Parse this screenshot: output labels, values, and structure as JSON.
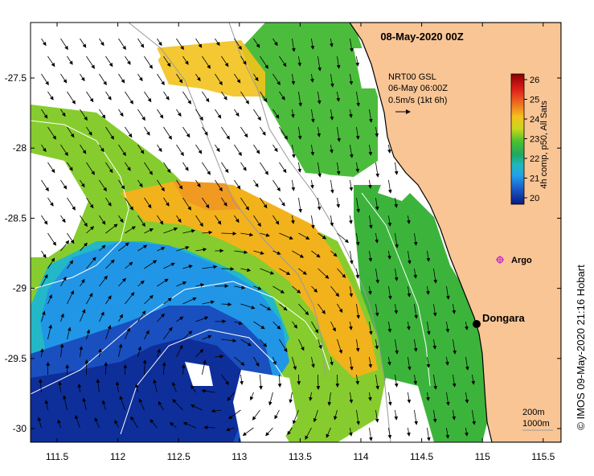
{
  "title": "08-May-2020 00Z",
  "current_info": {
    "line1": "NRT00 GSL",
    "line2": "06-May 06:00Z",
    "line3": "0.5m/s (1kt 6h)"
  },
  "colorbar": {
    "label": "4h comp, p50, All Sats",
    "ticks": [
      "26",
      "25",
      "24",
      "23",
      "22",
      "21",
      "20"
    ],
    "colors": [
      "#8b0000",
      "#d2161b",
      "#f07d1a",
      "#f2c11c",
      "#d8d51d",
      "#9ed21f",
      "#3fbf2a",
      "#1fa84a",
      "#20b0a0",
      "#21a8e0",
      "#1f6fd0",
      "#1634a8",
      "#0a1a80"
    ]
  },
  "places": [
    {
      "name": "Dongara",
      "lon": 114.93,
      "lat": -29.25
    },
    {
      "name": "Argo",
      "lon": 115.12,
      "lat": -28.78
    }
  ],
  "contours": {
    "labels": [
      "200m",
      "1000m"
    ]
  },
  "x_axis": {
    "ticks": [
      "111.5",
      "112",
      "112.5",
      "113",
      "113.5",
      "114",
      "114.5",
      "115",
      "115.5"
    ]
  },
  "y_axis": {
    "ticks": [
      "-27.5",
      "-28",
      "-28.5",
      "-29",
      "-29.5",
      "-30"
    ]
  },
  "credit": "© IMOS 09-May-2020 21:16 Hobart",
  "colors": {
    "land": "#f9c595",
    "coast": "#000000",
    "warm": "#f2b91c",
    "green": "#3cb83c",
    "cool": "#2196e6",
    "deep": "#0d3aa6"
  }
}
